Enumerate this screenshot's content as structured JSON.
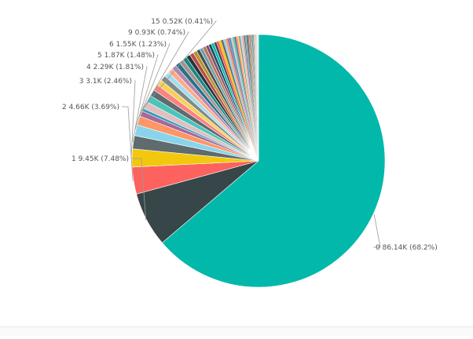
{
  "chart_data": {
    "type": "pie",
    "title": "",
    "total_slices": 83,
    "labeled_slices": [
      {
        "category": "0",
        "value": 86.14,
        "percent": 68.2,
        "label": "0 86.14K (68.2%)",
        "color": "#01B8AA"
      },
      {
        "category": "1",
        "value": 9.45,
        "percent": 7.48,
        "label": "1 9.45K (7.48%)",
        "color": "#374649"
      },
      {
        "category": "2",
        "value": 4.66,
        "percent": 3.69,
        "label": "2 4.66K (3.69%)",
        "color": "#FD625E"
      },
      {
        "category": "3",
        "value": 3.1,
        "percent": 2.46,
        "label": "3 3.1K (2.46%)",
        "color": "#F2C80F"
      },
      {
        "category": "4",
        "value": 2.29,
        "percent": 1.81,
        "label": "4 2.29K (1.81%)",
        "color": "#5F6B6D"
      },
      {
        "category": "5",
        "value": 1.87,
        "percent": 1.48,
        "label": "5 1.87K (1.48%)",
        "color": "#8AD4EB"
      },
      {
        "category": "6",
        "value": 1.55,
        "percent": 1.23,
        "label": "6 1.55K (1.23%)",
        "color": "#FE9666"
      },
      {
        "category": "9",
        "value": 0.93,
        "percent": 0.74,
        "label": "9 0.93K (0.74%)",
        "color": "#A66999"
      },
      {
        "category": "15",
        "value": 0.52,
        "percent": 0.41,
        "label": "15 0.52K (0.41%)",
        "color": "#3599B8"
      }
    ],
    "other_slices": [
      {
        "percent": 1.0,
        "color": "#DFBFBF"
      },
      {
        "percent": 0.95,
        "color": "#4AC5BB"
      },
      {
        "percent": 0.9,
        "color": "#5F6B6D"
      },
      {
        "percent": 0.85,
        "color": "#FB8281"
      },
      {
        "percent": 0.8,
        "color": "#F4D25A"
      },
      {
        "percent": 0.75,
        "color": "#7F898A"
      },
      {
        "percent": 0.7,
        "color": "#A4DDEE"
      },
      {
        "percent": 0.68,
        "color": "#FDAB89"
      },
      {
        "percent": 0.66,
        "color": "#B687AC"
      },
      {
        "percent": 0.64,
        "color": "#28738A"
      },
      {
        "percent": 0.6,
        "color": "#A78F8F"
      },
      {
        "percent": 0.58,
        "color": "#168980"
      },
      {
        "percent": 0.56,
        "color": "#293537"
      },
      {
        "percent": 0.54,
        "color": "#BB4A4A"
      },
      {
        "percent": 0.5,
        "color": "#B59525"
      },
      {
        "percent": 0.48,
        "color": "#475052"
      },
      {
        "percent": 0.46,
        "color": "#6A9FB0"
      },
      {
        "percent": 0.44,
        "color": "#BD7150"
      },
      {
        "percent": 0.42,
        "color": "#7B4F71"
      },
      {
        "percent": 0.4,
        "color": "#1B4D5C"
      },
      {
        "percent": 0.38,
        "color": "#01B8AA"
      },
      {
        "percent": 0.36,
        "color": "#374649"
      },
      {
        "percent": 0.34,
        "color": "#FD625E"
      },
      {
        "percent": 0.32,
        "color": "#F2C80F"
      },
      {
        "percent": 0.3,
        "color": "#5F6B6D"
      },
      {
        "percent": 0.28,
        "color": "#8AD4EB"
      },
      {
        "percent": 0.27,
        "color": "#FE9666"
      },
      {
        "percent": 0.26,
        "color": "#A66999"
      },
      {
        "percent": 0.25,
        "color": "#3599B8"
      },
      {
        "percent": 0.24,
        "color": "#DFBFBF"
      },
      {
        "percent": 0.23,
        "color": "#4AC5BB"
      },
      {
        "percent": 0.22,
        "color": "#5F6B6D"
      },
      {
        "percent": 0.21,
        "color": "#FB8281"
      },
      {
        "percent": 0.2,
        "color": "#F4D25A"
      },
      {
        "percent": 0.19,
        "color": "#7F898A"
      },
      {
        "percent": 0.18,
        "color": "#A4DDEE"
      },
      {
        "percent": 0.17,
        "color": "#FDAB89"
      },
      {
        "percent": 0.16,
        "color": "#B687AC"
      },
      {
        "percent": 0.15,
        "color": "#28738A"
      },
      {
        "percent": 0.14,
        "color": "#A78F8F"
      },
      {
        "percent": 0.13,
        "color": "#168980"
      },
      {
        "percent": 0.12,
        "color": "#293537"
      },
      {
        "percent": 0.11,
        "color": "#BB4A4A"
      },
      {
        "percent": 0.1,
        "color": "#B59525"
      },
      {
        "percent": 0.1,
        "color": "#475052"
      },
      {
        "percent": 0.09,
        "color": "#6A9FB0"
      },
      {
        "percent": 0.09,
        "color": "#BD7150"
      },
      {
        "percent": 0.08,
        "color": "#7B4F71"
      },
      {
        "percent": 0.08,
        "color": "#1B4D5C"
      },
      {
        "percent": 0.07,
        "color": "#01B8AA"
      },
      {
        "percent": 0.07,
        "color": "#374649"
      },
      {
        "percent": 0.06,
        "color": "#FD625E"
      },
      {
        "percent": 0.06,
        "color": "#F2C80F"
      },
      {
        "percent": 0.05,
        "color": "#5F6B6D"
      },
      {
        "percent": 0.05,
        "color": "#8AD4EB"
      },
      {
        "percent": 0.05,
        "color": "#FE9666"
      },
      {
        "percent": 0.04,
        "color": "#A66999"
      },
      {
        "percent": 0.04,
        "color": "#3599B8"
      },
      {
        "percent": 0.04,
        "color": "#DFBFBF"
      },
      {
        "percent": 0.03,
        "color": "#4AC5BB"
      },
      {
        "percent": 0.03,
        "color": "#FB8281"
      },
      {
        "percent": 0.03,
        "color": "#F4D25A"
      },
      {
        "percent": 0.02,
        "color": "#7F898A"
      },
      {
        "percent": 0.02,
        "color": "#A4DDEE"
      },
      {
        "percent": 0.02,
        "color": "#FDAB89"
      },
      {
        "percent": 0.02,
        "color": "#B687AC"
      },
      {
        "percent": 0.01,
        "color": "#28738A"
      },
      {
        "percent": 0.01,
        "color": "#A78F8F"
      },
      {
        "percent": 0.01,
        "color": "#168980"
      },
      {
        "percent": 0.01,
        "color": "#293537"
      },
      {
        "percent": 0.01,
        "color": "#BB4A4A"
      },
      {
        "percent": 0.01,
        "color": "#B59525"
      },
      {
        "percent": 0.01,
        "color": "#475052"
      },
      {
        "percent": 0.01,
        "color": "#6A9FB0"
      }
    ],
    "start_angle_deg": 0,
    "direction": "clockwise",
    "legend": "none",
    "data_labels": "outside with leader lines"
  },
  "colors": {
    "background": "#FFFFFF",
    "label_text": "#555555",
    "leader_line": "#9A9A9A",
    "divider": "#E9E9E9"
  }
}
